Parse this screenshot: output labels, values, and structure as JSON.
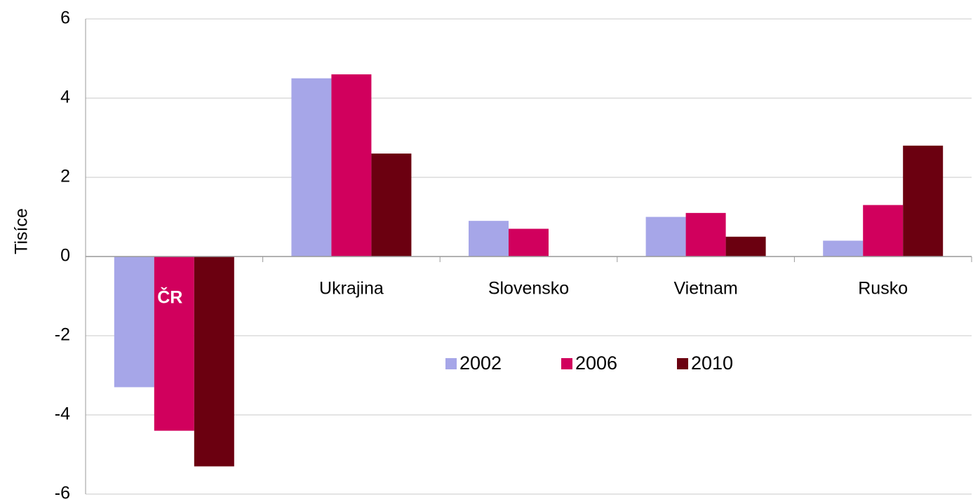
{
  "chart_data": {
    "type": "bar",
    "y_label": "Tisíce",
    "categories": [
      "ČR",
      "Ukrajina",
      "Slovensko",
      "Vietnam",
      "Rusko"
    ],
    "series": [
      {
        "name": "2002",
        "color": "#a6a6e8",
        "values": [
          -3.3,
          4.5,
          0.9,
          1.0,
          0.4
        ]
      },
      {
        "name": "2006",
        "color": "#d1005d",
        "values": [
          -4.4,
          4.6,
          0.7,
          1.1,
          1.3
        ]
      },
      {
        "name": "2010",
        "color": "#6b0010",
        "values": [
          -5.3,
          2.6,
          0,
          0.5,
          2.8
        ]
      }
    ],
    "ylim": [
      -6,
      6
    ],
    "yticks": [
      -6,
      -4,
      -2,
      0,
      2,
      4,
      6
    ],
    "grid": true
  }
}
